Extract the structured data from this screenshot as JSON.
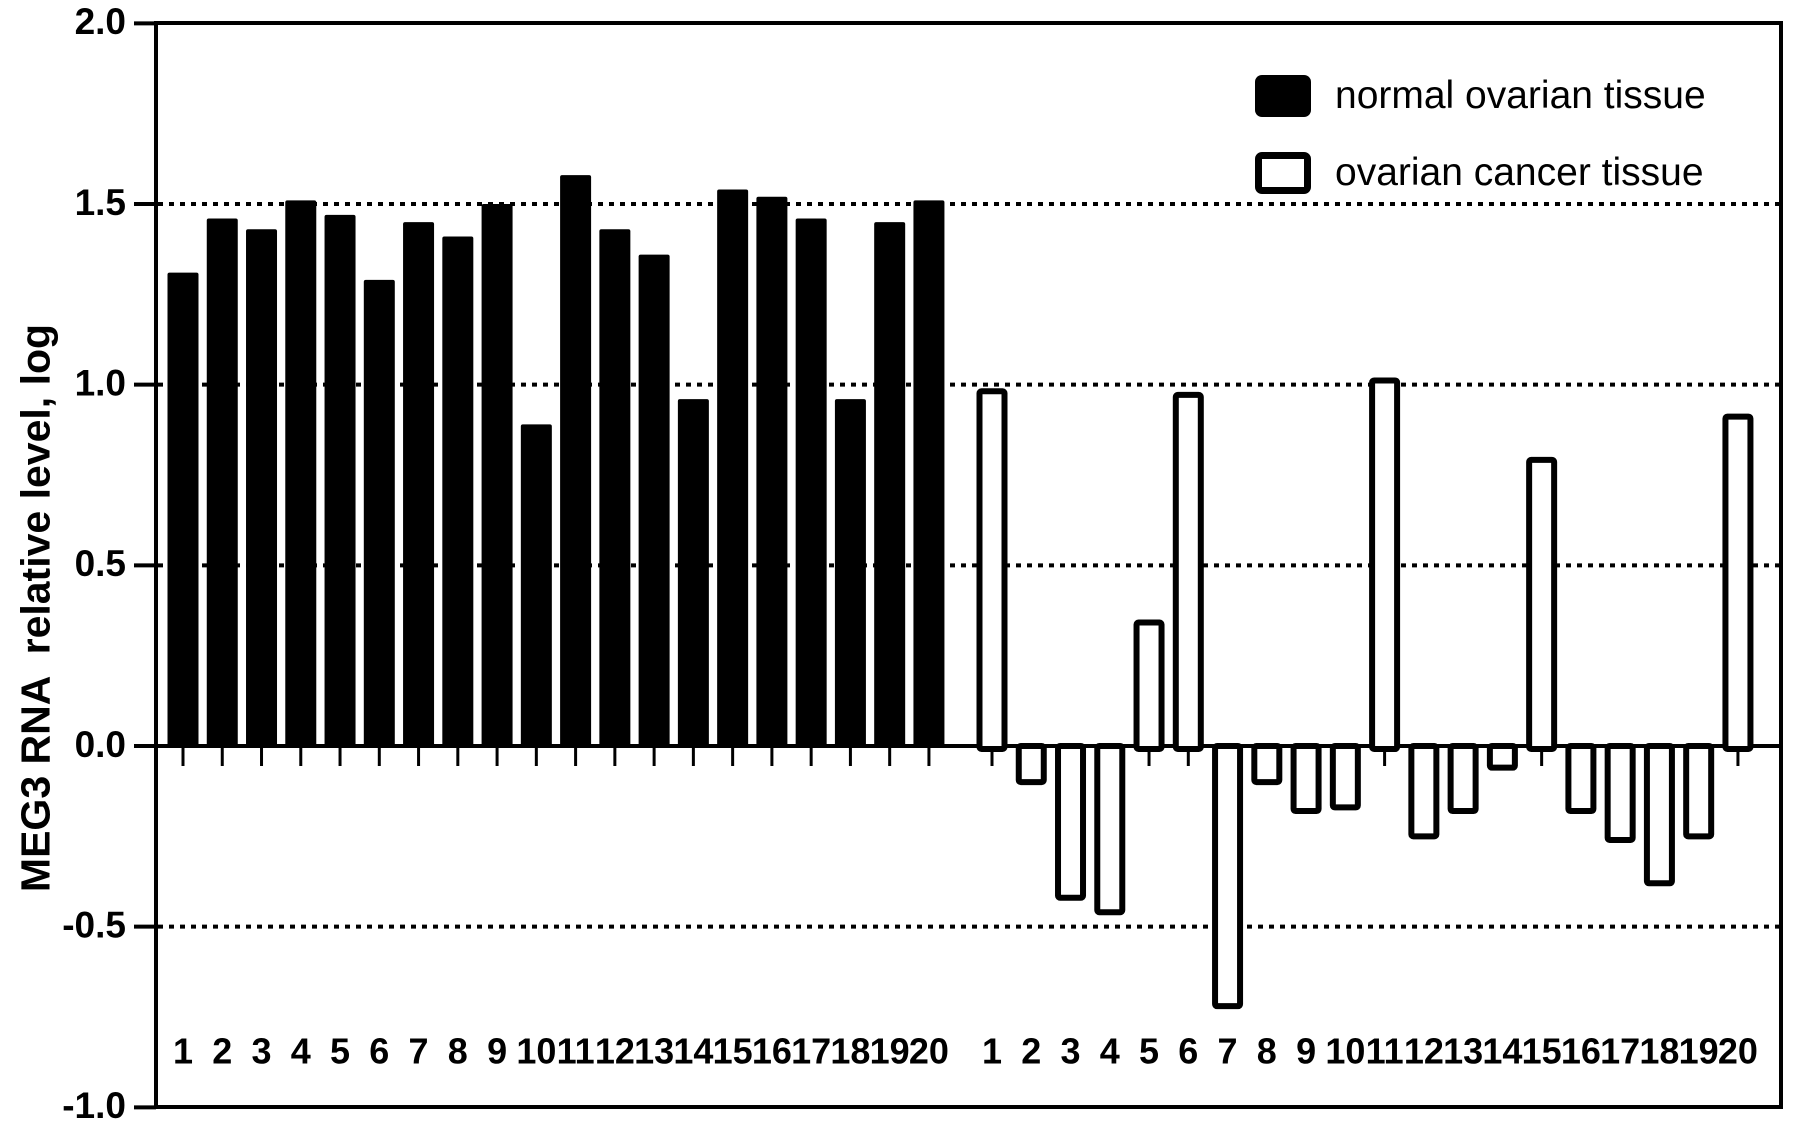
{
  "figure": {
    "background": "#ffffff",
    "foreground": "#000000"
  },
  "legend": {
    "items": [
      {
        "label": "normal ovarian tissue",
        "swatch": "black-filled"
      },
      {
        "label": "ovarian cancer tissue",
        "swatch": "white-open"
      }
    ]
  },
  "chart_data": {
    "type": "bar",
    "title": "",
    "xlabel": "",
    "ylabel": "MEG3 RNA  relative level, log",
    "ylim": [
      -1.0,
      2.0
    ],
    "yticks": [
      2.0,
      1.5,
      1.0,
      0.5,
      0.0,
      -0.5,
      -1.0
    ],
    "ytick_labels": [
      "2.0",
      "1.5",
      "1.0",
      "0.5",
      "0.0",
      "-0.5",
      "-1.0"
    ],
    "dotted_gridlines": [
      1.5,
      1.0,
      0.5,
      -0.5
    ],
    "baseline": 0.0,
    "grid": "dotted-horizontal",
    "legend_position": "top-right",
    "categories": [
      "1",
      "2",
      "3",
      "4",
      "5",
      "6",
      "7",
      "8",
      "9",
      "10",
      "11",
      "12",
      "13",
      "14",
      "15",
      "16",
      "17",
      "18",
      "19",
      "20"
    ],
    "series": [
      {
        "name": "normal ovarian tissue",
        "fill": "#000000",
        "values": [
          1.31,
          1.46,
          1.43,
          1.51,
          1.47,
          1.29,
          1.45,
          1.41,
          1.5,
          0.89,
          1.58,
          1.43,
          1.36,
          0.96,
          1.54,
          1.52,
          1.46,
          0.96,
          1.45,
          1.51
        ]
      },
      {
        "name": "ovarian cancer tissue",
        "fill": "#ffffff",
        "values": [
          0.99,
          -0.1,
          -0.42,
          -0.46,
          0.35,
          0.98,
          -0.72,
          -0.1,
          -0.18,
          -0.17,
          1.02,
          -0.25,
          -0.18,
          -0.06,
          0.8,
          -0.18,
          -0.26,
          -0.38,
          -0.25,
          0.92
        ]
      }
    ]
  }
}
